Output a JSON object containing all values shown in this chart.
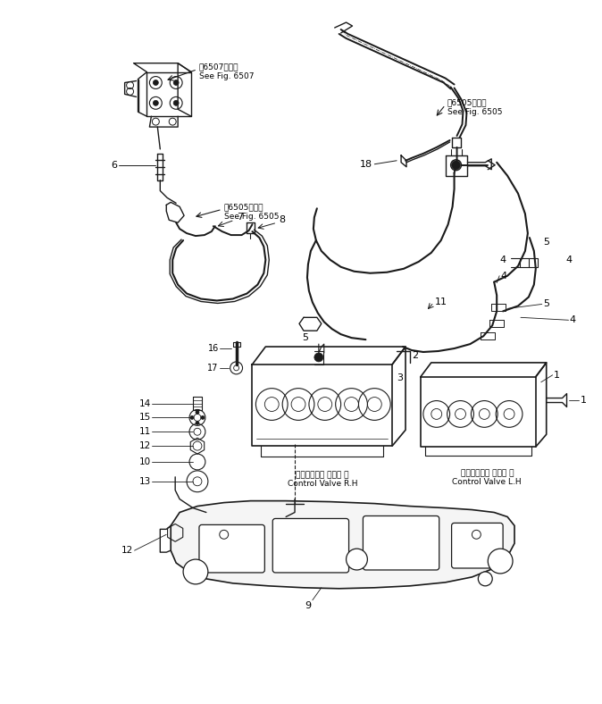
{
  "background_color": "#ffffff",
  "fig_width": 6.74,
  "fig_height": 7.88,
  "dpi": 100,
  "line_color": "#1a1a1a",
  "text_color": "#000000",
  "ref_6507_text": "第6507図参照\nSee Fig. 6507",
  "ref_6505_left_text": "第6505図参照\nSee Fig. 6505",
  "ref_6505_right_text": "第6505図参照\nSee Fig. 6505",
  "cv_rh_text": "コントロール バルブ 右\nControl Valve R.H",
  "cv_lh_text": "コントロール バルブ 左\nControl Valve L.H"
}
